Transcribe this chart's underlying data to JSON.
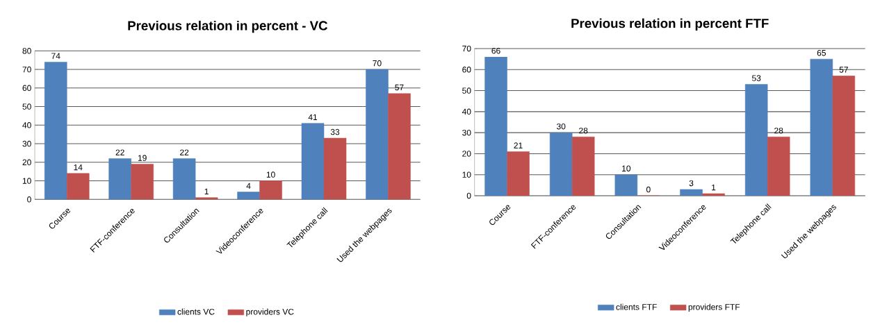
{
  "chart_data": [
    {
      "type": "bar",
      "title": "Previous relation in percent - VC",
      "categories": [
        "Course",
        "FTF-conference",
        "Consultation",
        "Videoconference",
        "Telephone call",
        "Used the webpages"
      ],
      "series": [
        {
          "name": "clients VC",
          "color": "#4f81bd",
          "values": [
            74,
            22,
            22,
            4,
            41,
            70
          ]
        },
        {
          "name": "providers VC",
          "color": "#c0504d",
          "values": [
            14,
            19,
            1,
            10,
            33,
            57
          ]
        }
      ],
      "ylim": [
        0,
        80
      ],
      "yticks": [
        0,
        10,
        20,
        30,
        40,
        50,
        60,
        70,
        80
      ],
      "grid": "y",
      "legend": "bottom",
      "data_labels": true
    },
    {
      "type": "bar",
      "title": "Previous relation in percent FTF",
      "categories": [
        "Course",
        "FTF-conference",
        "Consultation",
        "Videoconference",
        "Telephone call",
        "Used the webpages"
      ],
      "series": [
        {
          "name": "clients FTF",
          "color": "#4f81bd",
          "values": [
            66,
            30,
            10,
            3,
            53,
            65
          ]
        },
        {
          "name": "providers FTF",
          "color": "#c0504d",
          "values": [
            21,
            28,
            0,
            1,
            28,
            57
          ]
        }
      ],
      "ylim": [
        0,
        70
      ],
      "yticks": [
        0,
        10,
        20,
        30,
        40,
        50,
        60,
        70
      ],
      "grid": "y",
      "legend": "bottom",
      "data_labels": true
    }
  ]
}
